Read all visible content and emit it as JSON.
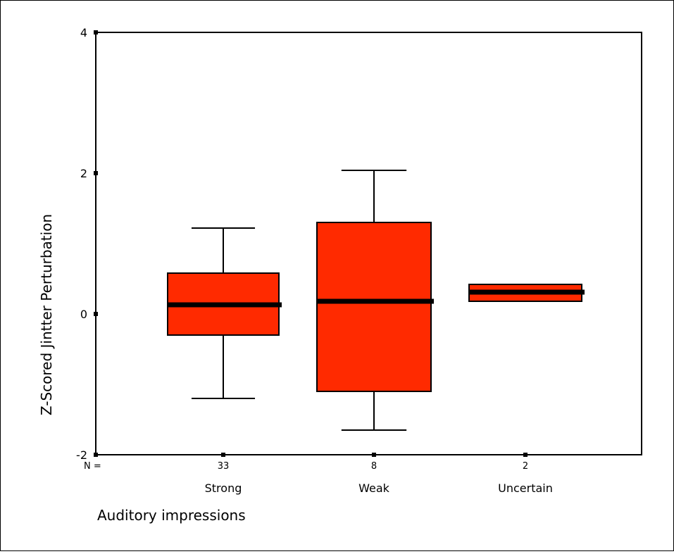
{
  "chart_data": {
    "type": "box",
    "xlabel": "Auditory impressions",
    "ylabel": "Z-Scored Jintter Perturbation",
    "ylim": [
      -2,
      4
    ],
    "yticks": [
      "-2",
      "0",
      "2",
      "4"
    ],
    "n_label": "N =",
    "grid": false,
    "box_color": "#ff2a00",
    "series": [
      {
        "category": "Strong",
        "n": "33",
        "whisker_low": -1.2,
        "q1": -0.3,
        "median": 0.13,
        "q3": 0.58,
        "whisker_high": 1.22
      },
      {
        "category": "Weak",
        "n": "8",
        "whisker_low": -1.65,
        "q1": -1.1,
        "median": 0.18,
        "q3": 1.3,
        "whisker_high": 2.04
      },
      {
        "category": "Uncertain",
        "n": "2",
        "whisker_low": 0.18,
        "q1": 0.18,
        "median": 0.31,
        "q3": 0.42,
        "whisker_high": 0.42
      }
    ]
  }
}
